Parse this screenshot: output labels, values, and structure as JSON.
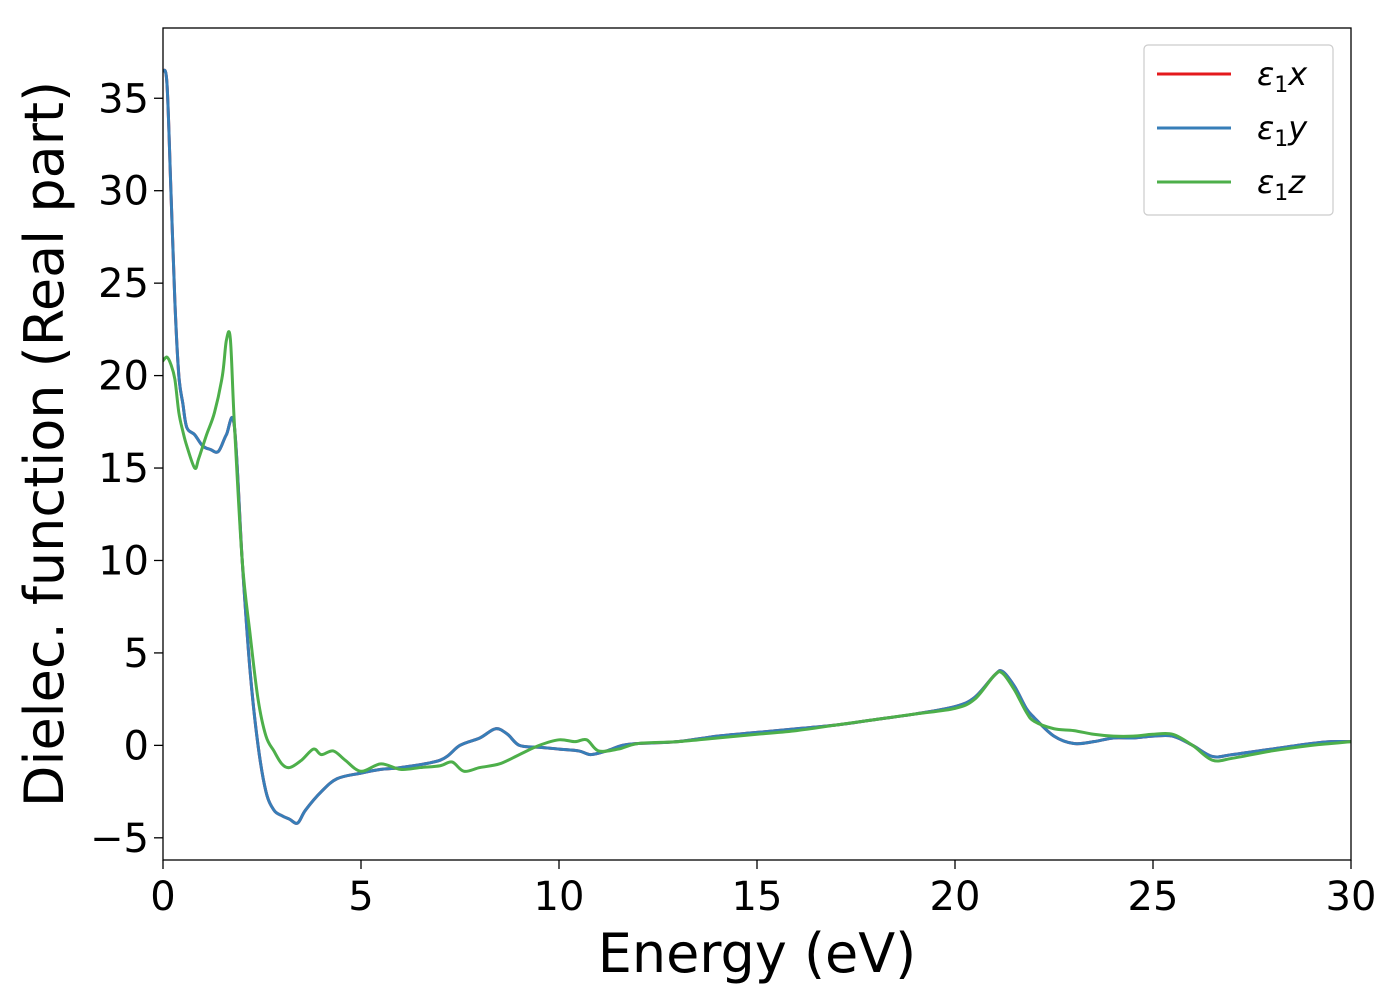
{
  "chart_data": {
    "type": "line",
    "xlabel": "Energy (eV)",
    "ylabel": "Dielec. function (Real part)",
    "xlim": [
      0,
      30
    ],
    "ylim": [
      -6.2,
      38.8
    ],
    "xticks": [
      0,
      5,
      10,
      15,
      20,
      25,
      30
    ],
    "yticks": [
      -5,
      0,
      5,
      10,
      15,
      20,
      25,
      30,
      35
    ],
    "ytick_labels": [
      "−5",
      "0",
      "5",
      "10",
      "15",
      "20",
      "25",
      "30",
      "35"
    ],
    "grid": false,
    "legend": {
      "placement": "top-right"
    },
    "series": [
      {
        "name": "ε1x",
        "base": "ε",
        "sub": "1",
        "suffix": "x",
        "color": "#e41a1c",
        "x": [
          0,
          0.1,
          0.2,
          0.3,
          0.4,
          0.5,
          0.6,
          0.8,
          1.0,
          1.2,
          1.4,
          1.6,
          1.8,
          2.0,
          2.2,
          2.4,
          2.6,
          2.8,
          3.0,
          3.2,
          3.4,
          3.6,
          4.0,
          4.4,
          5.0,
          5.5,
          6.0,
          7.0,
          7.5,
          8.0,
          8.4,
          8.7,
          9.0,
          9.5,
          10.0,
          10.5,
          10.8,
          11.2,
          11.6,
          12.0,
          13.0,
          14.0,
          15.0,
          16.0,
          17.0,
          18.0,
          19.0,
          20.0,
          20.5,
          21.0,
          21.2,
          21.5,
          21.8,
          22.0,
          22.5,
          23.0,
          23.5,
          24.0,
          24.5,
          25.0,
          25.5,
          26.0,
          26.5,
          27.0,
          28.0,
          29.0,
          29.5,
          30.0
        ],
        "y": [
          36.5,
          35.8,
          30.0,
          24.0,
          20.0,
          18.5,
          17.2,
          16.8,
          16.2,
          16.0,
          15.9,
          16.8,
          17.3,
          10.0,
          4.0,
          0.0,
          -2.5,
          -3.5,
          -3.8,
          -4.0,
          -4.2,
          -3.5,
          -2.5,
          -1.8,
          -1.5,
          -1.3,
          -1.2,
          -0.8,
          0.0,
          0.4,
          0.9,
          0.6,
          0.0,
          -0.1,
          -0.2,
          -0.3,
          -0.5,
          -0.3,
          0.0,
          0.1,
          0.2,
          0.5,
          0.7,
          0.9,
          1.1,
          1.4,
          1.7,
          2.1,
          2.6,
          3.8,
          4.0,
          3.2,
          2.0,
          1.5,
          0.5,
          0.1,
          0.2,
          0.4,
          0.4,
          0.5,
          0.5,
          0.0,
          -0.6,
          -0.5,
          -0.2,
          0.1,
          0.2,
          0.2
        ]
      },
      {
        "name": "ε1y",
        "base": "ε",
        "sub": "1",
        "suffix": "y",
        "color": "#377eb8",
        "x": [
          0,
          0.1,
          0.2,
          0.3,
          0.4,
          0.5,
          0.6,
          0.8,
          1.0,
          1.2,
          1.4,
          1.6,
          1.8,
          2.0,
          2.2,
          2.4,
          2.6,
          2.8,
          3.0,
          3.2,
          3.4,
          3.6,
          4.0,
          4.4,
          5.0,
          5.5,
          6.0,
          7.0,
          7.5,
          8.0,
          8.4,
          8.7,
          9.0,
          9.5,
          10.0,
          10.5,
          10.8,
          11.2,
          11.6,
          12.0,
          13.0,
          14.0,
          15.0,
          16.0,
          17.0,
          18.0,
          19.0,
          20.0,
          20.5,
          21.0,
          21.2,
          21.5,
          21.8,
          22.0,
          22.5,
          23.0,
          23.5,
          24.0,
          24.5,
          25.0,
          25.5,
          26.0,
          26.5,
          27.0,
          28.0,
          29.0,
          29.5,
          30.0
        ],
        "y": [
          36.5,
          35.8,
          30.0,
          24.0,
          20.0,
          18.5,
          17.2,
          16.8,
          16.2,
          16.0,
          15.9,
          16.8,
          17.3,
          10.0,
          4.0,
          0.0,
          -2.5,
          -3.5,
          -3.8,
          -4.0,
          -4.2,
          -3.5,
          -2.5,
          -1.8,
          -1.5,
          -1.3,
          -1.2,
          -0.8,
          0.0,
          0.4,
          0.9,
          0.6,
          0.0,
          -0.1,
          -0.2,
          -0.3,
          -0.5,
          -0.3,
          0.0,
          0.1,
          0.2,
          0.5,
          0.7,
          0.9,
          1.1,
          1.4,
          1.7,
          2.1,
          2.6,
          3.8,
          4.0,
          3.2,
          2.0,
          1.5,
          0.5,
          0.1,
          0.2,
          0.4,
          0.4,
          0.5,
          0.5,
          0.0,
          -0.6,
          -0.5,
          -0.2,
          0.1,
          0.2,
          0.2
        ]
      },
      {
        "name": "ε1z",
        "base": "ε",
        "sub": "1",
        "suffix": "z",
        "color": "#4daf4a",
        "x": [
          0,
          0.1,
          0.2,
          0.3,
          0.4,
          0.5,
          0.6,
          0.8,
          0.9,
          1.1,
          1.3,
          1.5,
          1.6,
          1.7,
          1.8,
          2.0,
          2.2,
          2.4,
          2.6,
          2.8,
          3.0,
          3.2,
          3.5,
          3.8,
          4.0,
          4.3,
          4.6,
          5.0,
          5.5,
          6.0,
          6.5,
          7.0,
          7.3,
          7.6,
          8.0,
          8.5,
          9.0,
          9.5,
          10.0,
          10.4,
          10.7,
          11.0,
          11.5,
          12.0,
          13.0,
          14.0,
          15.0,
          16.0,
          17.0,
          18.0,
          19.0,
          20.0,
          20.5,
          21.0,
          21.2,
          21.5,
          21.8,
          22.0,
          22.5,
          23.0,
          23.5,
          24.0,
          24.5,
          25.0,
          25.5,
          26.0,
          26.5,
          27.0,
          28.0,
          29.0,
          29.5,
          30.0
        ],
        "y": [
          20.8,
          21.0,
          20.6,
          19.8,
          18.0,
          17.0,
          16.2,
          15.0,
          15.5,
          16.8,
          18.0,
          20.0,
          21.9,
          22.0,
          17.5,
          10.0,
          6.0,
          2.5,
          0.5,
          -0.3,
          -1.0,
          -1.2,
          -0.8,
          -0.2,
          -0.5,
          -0.3,
          -0.8,
          -1.4,
          -1.0,
          -1.3,
          -1.2,
          -1.1,
          -0.9,
          -1.4,
          -1.2,
          -1.0,
          -0.5,
          0.0,
          0.3,
          0.2,
          0.3,
          -0.3,
          -0.2,
          0.1,
          0.2,
          0.4,
          0.6,
          0.8,
          1.1,
          1.4,
          1.7,
          2.0,
          2.5,
          3.8,
          3.9,
          3.0,
          1.8,
          1.3,
          0.9,
          0.8,
          0.6,
          0.5,
          0.5,
          0.6,
          0.6,
          0.0,
          -0.8,
          -0.7,
          -0.3,
          0.0,
          0.1,
          0.2
        ]
      }
    ]
  }
}
